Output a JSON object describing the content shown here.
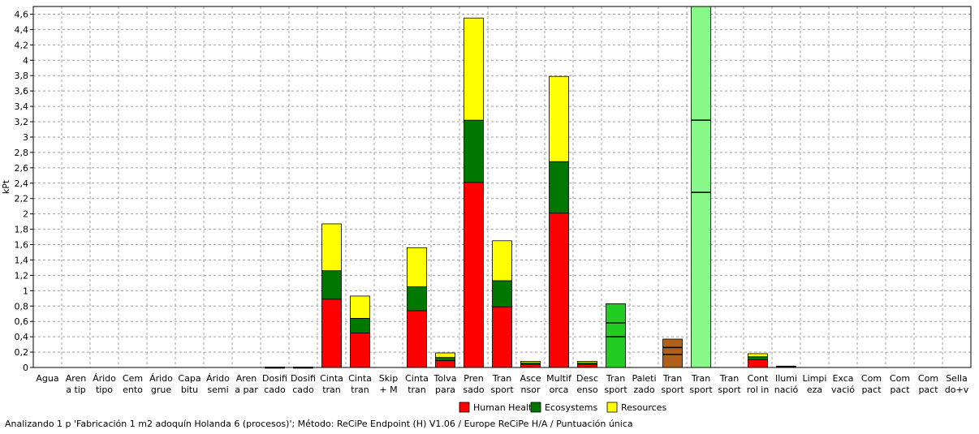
{
  "status_text": "Analizando 1 p 'Fabricación 1 m2 adoquín Holanda 6 (procesos)'; Método: ReCiPe Endpoint (H) V1.06 / Europe ReCiPe H/A / Puntuación única",
  "chart_data": {
    "type": "bar",
    "stacked": true,
    "ylabel": "kPt",
    "ylim": [
      0,
      4.7
    ],
    "yticks": [
      "0",
      "0,2",
      "0,4",
      "0,6",
      "0,8",
      "1",
      "1,2",
      "1,4",
      "1,6",
      "1,8",
      "2",
      "2,2",
      "2,4",
      "2,6",
      "2,8",
      "3",
      "3,2",
      "3,4",
      "3,6",
      "3,8",
      "4",
      "4,2",
      "4,4",
      "4,6"
    ],
    "grid": true,
    "legend_position": "bottom-center",
    "categories": [
      [
        "Agua"
      ],
      [
        "Aren",
        "a tip"
      ],
      [
        "Árido",
        "tipo"
      ],
      [
        "Cem",
        "ento"
      ],
      [
        "Árido",
        "grue"
      ],
      [
        "Capa",
        "bitu"
      ],
      [
        "Árido",
        "semi"
      ],
      [
        "Aren",
        "a par"
      ],
      [
        "Dosifi",
        "cado"
      ],
      [
        "Dosifi",
        "cado"
      ],
      [
        "Cinta",
        "tran"
      ],
      [
        "Cinta",
        "tran"
      ],
      [
        "Skip",
        "+ M"
      ],
      [
        "Cinta",
        "tran"
      ],
      [
        "Tolva",
        "para"
      ],
      [
        "Pren",
        "sado"
      ],
      [
        "Tran",
        "sport"
      ],
      [
        "Asce",
        "nsor"
      ],
      [
        "Multif",
        "orca"
      ],
      [
        "Desc",
        "enso"
      ],
      [
        "Tran",
        "sport"
      ],
      [
        "Paleti",
        "zado"
      ],
      [
        "Tran",
        "sport"
      ],
      [
        "Tran",
        "sport"
      ],
      [
        "Tran",
        "sport"
      ],
      [
        "Cont",
        "rol in"
      ],
      [
        "Ilumi",
        "nació"
      ],
      [
        "Limpi",
        "eza"
      ],
      [
        "Exca",
        "vació"
      ],
      [
        "Com",
        "pact"
      ],
      [
        "Com",
        "pact"
      ],
      [
        "Com",
        "pact"
      ],
      [
        "Sella",
        "do+v"
      ]
    ],
    "series": [
      {
        "name": "Human Health",
        "color": "#ff0000",
        "values": [
          0,
          0,
          0,
          0,
          0,
          0,
          0,
          0,
          0,
          0,
          0.89,
          0.45,
          0,
          0.74,
          0.09,
          2.41,
          0.79,
          0.04,
          2.01,
          0.04,
          0,
          0,
          0,
          0,
          0,
          0.1,
          0,
          0,
          0,
          0,
          0,
          0,
          0
        ]
      },
      {
        "name": "Ecosystems",
        "color": "#007800",
        "values": [
          0,
          0,
          0,
          0,
          0,
          0,
          0,
          0,
          0.003,
          0.003,
          0.37,
          0.19,
          0,
          0.31,
          0.04,
          0.81,
          0.34,
          0.02,
          0.67,
          0.02,
          0,
          0,
          0,
          0,
          0,
          0.04,
          0,
          0,
          0,
          0,
          0,
          0,
          0
        ]
      },
      {
        "name": "Resources",
        "color": "#ffff00",
        "values": [
          0,
          0,
          0,
          0,
          0,
          0,
          0,
          0,
          0.003,
          0.003,
          0.61,
          0.29,
          0,
          0.51,
          0.06,
          1.33,
          0.52,
          0.02,
          1.11,
          0.02,
          0,
          0,
          0,
          0,
          0,
          0.04,
          0,
          0,
          0,
          0,
          0,
          0,
          0
        ]
      }
    ],
    "extra_bars": [
      {
        "category_index": 20,
        "color": "#22cc22",
        "segments": [
          0.4,
          0.18,
          0.25
        ]
      },
      {
        "category_index": 22,
        "color": "#b0601a",
        "segments": [
          0.17,
          0.09,
          0.11
        ]
      },
      {
        "category_index": 23,
        "color": "#88f888",
        "segments": [
          2.28,
          0.94,
          1.6
        ]
      },
      {
        "category_index": 26,
        "color": "#3333aa",
        "segments": [
          0.01,
          0.004,
          0.004
        ]
      }
    ]
  }
}
